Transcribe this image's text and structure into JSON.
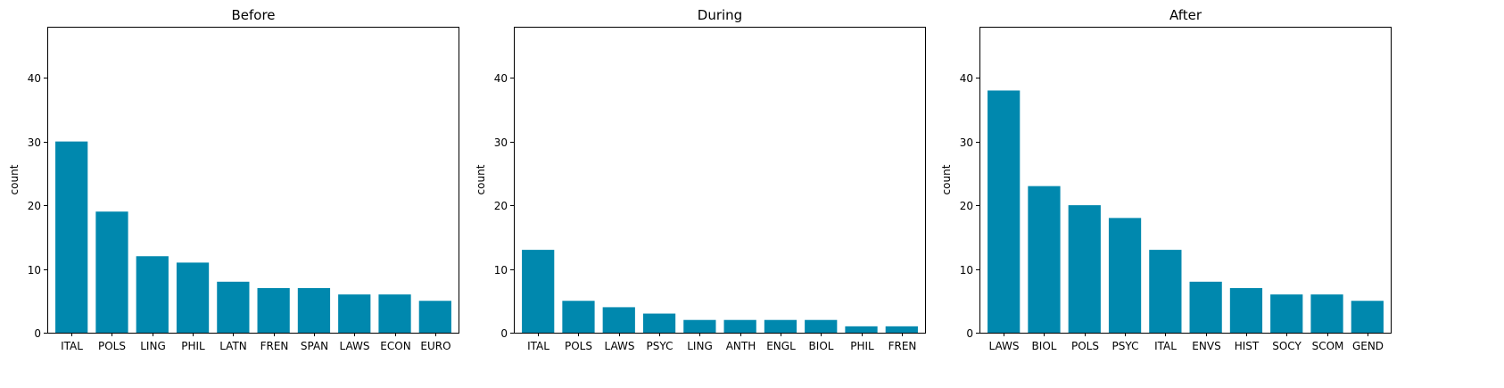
{
  "chart_data": [
    {
      "type": "bar",
      "title": "Before",
      "xlabel": "",
      "ylabel": "count",
      "ylim": [
        0,
        48
      ],
      "yticks": [
        0,
        10,
        20,
        30,
        40
      ],
      "grid": false,
      "color": "#0088ae",
      "categories": [
        "ITAL",
        "POLS",
        "LING",
        "PHIL",
        "LATN",
        "FREN",
        "SPAN",
        "LAWS",
        "ECON",
        "EURO"
      ],
      "values": [
        30,
        19,
        12,
        11,
        8,
        7,
        7,
        6,
        6,
        5
      ]
    },
    {
      "type": "bar",
      "title": "During",
      "xlabel": "",
      "ylabel": "count",
      "ylim": [
        0,
        48
      ],
      "yticks": [
        0,
        10,
        20,
        30,
        40
      ],
      "grid": false,
      "color": "#0088ae",
      "categories": [
        "ITAL",
        "POLS",
        "LAWS",
        "PSYC",
        "LING",
        "ANTH",
        "ENGL",
        "BIOL",
        "PHIL",
        "FREN"
      ],
      "values": [
        13,
        5,
        4,
        3,
        2,
        2,
        2,
        2,
        1,
        1
      ]
    },
    {
      "type": "bar",
      "title": "After",
      "xlabel": "",
      "ylabel": "count",
      "ylim": [
        0,
        48
      ],
      "yticks": [
        0,
        10,
        20,
        30,
        40
      ],
      "grid": false,
      "color": "#0088ae",
      "categories": [
        "LAWS",
        "BIOL",
        "POLS",
        "PSYC",
        "ITAL",
        "ENVS",
        "HIST",
        "SOCY",
        "SCOM",
        "GEND"
      ],
      "values": [
        38,
        23,
        20,
        18,
        13,
        8,
        7,
        6,
        6,
        5
      ]
    }
  ]
}
